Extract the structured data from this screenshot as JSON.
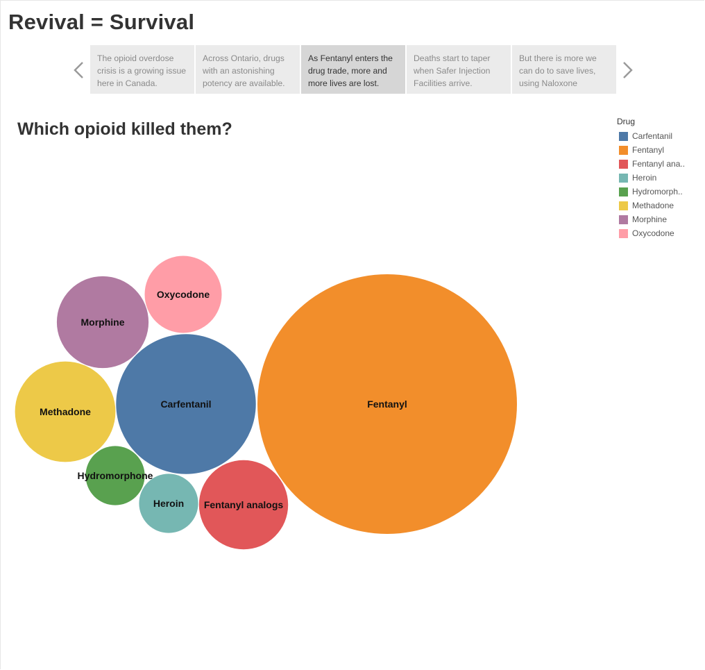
{
  "story": {
    "title": "Revival = Survival",
    "points": [
      {
        "text": "The opioid overdose crisis is a growing issue here in Canada.",
        "active": false
      },
      {
        "text": "Across Ontario, drugs with an astonishing potency are available.",
        "active": false
      },
      {
        "text": "As Fentanyl enters the drug trade, more and more lives are lost.",
        "active": true
      },
      {
        "text": "Deaths start to taper when Safer Injection Facilities arrive.",
        "active": false
      },
      {
        "text": "But there is more we can do to save lives, using Naloxone",
        "active": false
      }
    ],
    "prev_icon": "chevron-left-icon",
    "next_icon": "chevron-right-icon"
  },
  "sheet": {
    "title": "Which opioid killed them?"
  },
  "legend": {
    "title": "Drug",
    "items": [
      {
        "label": "Carfentanil",
        "color": "#4e79a7"
      },
      {
        "label": "Fentanyl",
        "color": "#f28e2b"
      },
      {
        "label": "Fentanyl ana..",
        "color": "#e15759"
      },
      {
        "label": "Heroin",
        "color": "#76b7b2"
      },
      {
        "label": "Hydromorph..",
        "color": "#59a14f"
      },
      {
        "label": "Methadone",
        "color": "#edc948"
      },
      {
        "label": "Morphine",
        "color": "#b07aa1"
      },
      {
        "label": "Oxycodone",
        "color": "#ff9da7"
      }
    ]
  },
  "chart_data": {
    "type": "bubble",
    "title": "Which opioid killed them?",
    "size_measure": "relative bubble area (Fentanyl = 100)",
    "items": [
      {
        "label": "Fentanyl",
        "value": 100,
        "color": "#f28e2b"
      },
      {
        "label": "Carfentanil",
        "value": 29,
        "color": "#4e79a7"
      },
      {
        "label": "Methadone",
        "value": 15,
        "color": "#edc948"
      },
      {
        "label": "Morphine",
        "value": 12.5,
        "color": "#b07aa1"
      },
      {
        "label": "Fentanyl analogs",
        "value": 11.8,
        "color": "#e15759"
      },
      {
        "label": "Oxycodone",
        "value": 8.8,
        "color": "#ff9da7"
      },
      {
        "label": "Heroin",
        "value": 5.2,
        "color": "#76b7b2"
      },
      {
        "label": "Hydromorphone",
        "value": 5.2,
        "color": "#59a14f"
      }
    ]
  }
}
